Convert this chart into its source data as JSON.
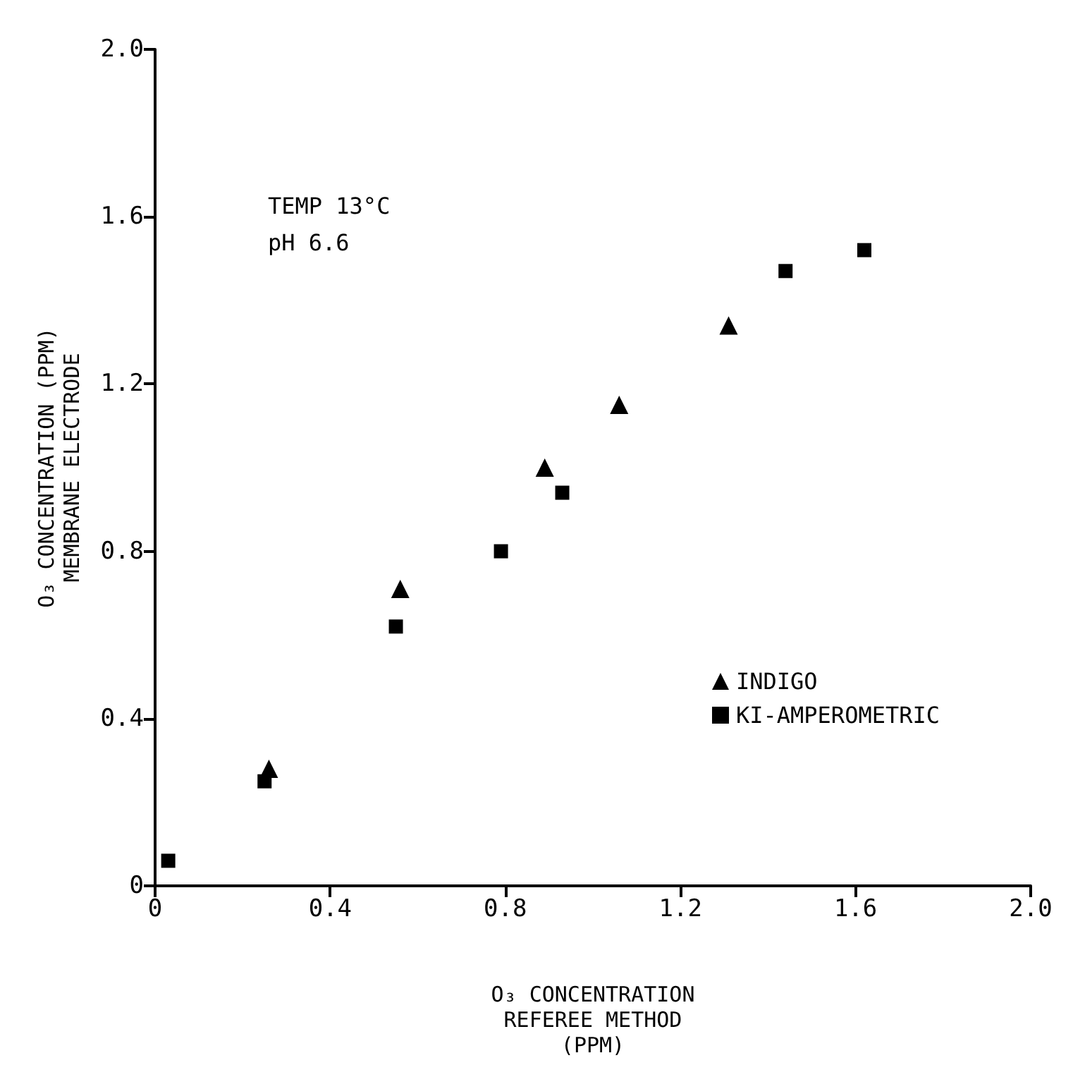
{
  "chart_data": {
    "type": "scatter",
    "xlabel": "O₃ CONCENTRATION\nREFEREE METHOD\n(PPM)",
    "ylabel": "O₃ CONCENTRATION (PPM)\nMEMBRANE ELECTRODE",
    "annotations": [
      "TEMP 13°C\npH 6.6"
    ],
    "series": [
      {
        "name": "INDIGO",
        "color": "#000000",
        "marker": "triangle",
        "x": [
          0.26,
          0.56,
          0.89,
          1.06,
          1.31
        ],
        "values": [
          0.28,
          0.71,
          1.0,
          1.15,
          1.34
        ]
      },
      {
        "name": "KI-AMPEROMETRIC",
        "color": "#000000",
        "marker": "square",
        "x": [
          0.03,
          0.25,
          0.55,
          0.79,
          0.93,
          1.44,
          1.62
        ],
        "values": [
          0.06,
          0.25,
          0.62,
          0.8,
          0.94,
          1.47,
          1.52
        ]
      }
    ],
    "xlim": [
      0,
      2.0
    ],
    "xticks": [
      {
        "value": 0,
        "label": "0"
      },
      {
        "value": 0.4,
        "label": "0.4"
      },
      {
        "value": 0.8,
        "label": "0.8"
      },
      {
        "value": 1.2,
        "label": "1.2"
      },
      {
        "value": 1.6,
        "label": "1.6"
      },
      {
        "value": 2.0,
        "label": "2.0"
      }
    ],
    "ylim": [
      0,
      2.0
    ],
    "yticks": [
      {
        "value": 0,
        "label": "0"
      },
      {
        "value": 0.4,
        "label": "0.4"
      },
      {
        "value": 0.8,
        "label": "0.8"
      },
      {
        "value": 1.2,
        "label": "1.2"
      },
      {
        "value": 1.6,
        "label": "1.6"
      },
      {
        "value": 2.0,
        "label": "2.0"
      }
    ],
    "grid": false,
    "legend": "right"
  }
}
